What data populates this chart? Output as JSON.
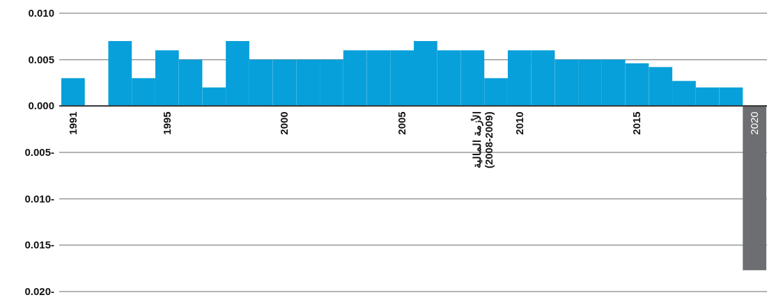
{
  "chart_data": {
    "type": "bar",
    "categories": [
      "1991",
      null,
      null,
      null,
      "1995",
      null,
      null,
      null,
      null,
      "2000",
      null,
      null,
      null,
      null,
      "2005",
      null,
      null,
      null,
      null,
      "2010",
      null,
      null,
      null,
      null,
      "2015",
      null,
      null,
      null,
      null,
      "2020"
    ],
    "values": [
      0.003,
      0,
      0.007,
      0.003,
      0.006,
      0.005,
      0.002,
      0.007,
      0.005,
      0.005,
      0.005,
      0.005,
      0.006,
      0.006,
      0.006,
      0.007,
      0.006,
      0.006,
      0.003,
      0.006,
      0.006,
      0.005,
      0.005,
      0.005,
      0.0046,
      0.0042,
      0.0027,
      0.002,
      0.002,
      -0.0177
    ],
    "colors": [
      "#08a0da",
      "#08a0da",
      "#08a0da",
      "#08a0da",
      "#08a0da",
      "#08a0da",
      "#08a0da",
      "#08a0da",
      "#08a0da",
      "#08a0da",
      "#08a0da",
      "#08a0da",
      "#08a0da",
      "#08a0da",
      "#08a0da",
      "#08a0da",
      "#08a0da",
      "#08a0da",
      "#08a0da",
      "#08a0da",
      "#08a0da",
      "#08a0da",
      "#08a0da",
      "#08a0da",
      "#08a0da",
      "#08a0da",
      "#08a0da",
      "#08a0da",
      "#08a0da",
      "#6d6e71"
    ],
    "ylim": [
      -0.02,
      0.01
    ],
    "yticks": [
      {
        "value": 0.01,
        "label": "0.010"
      },
      {
        "value": 0.005,
        "label": "0.005"
      },
      {
        "value": 0,
        "label": "0.000"
      },
      {
        "value": -0.005,
        "label": "0.005-"
      },
      {
        "value": -0.01,
        "label": "0.010-"
      },
      {
        "value": -0.015,
        "label": "0.015-"
      },
      {
        "value": -0.02,
        "label": "0.020-"
      }
    ],
    "grid": "y",
    "annotations": [
      "الأزمة المالية\n(2008-2009)"
    ]
  }
}
